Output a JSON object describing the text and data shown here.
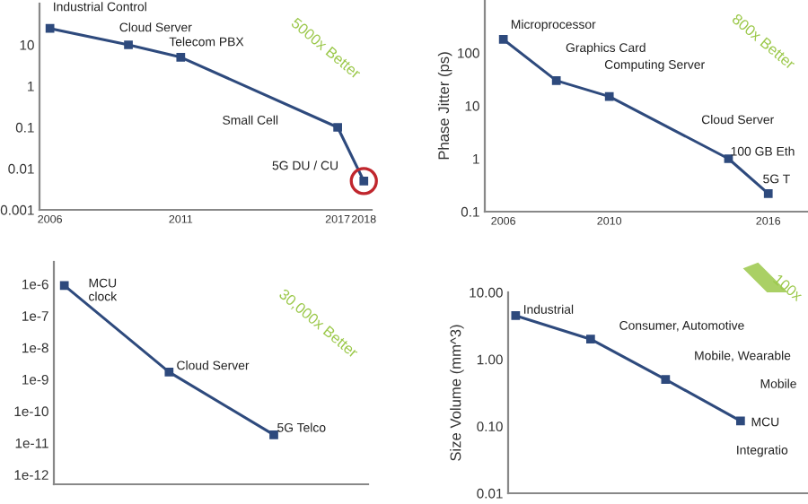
{
  "chart_data": [
    {
      "type": "line",
      "x": [
        2006,
        2009,
        2011,
        2017,
        2018
      ],
      "series": [
        {
          "color": "#2e4a7d",
          "values": [
            25,
            10,
            5,
            0.1,
            0.005
          ]
        }
      ],
      "log": "y",
      "xlim": [
        2005.6,
        2018.3
      ],
      "xticks": [
        2006,
        2011,
        2017,
        2018
      ],
      "ylim": [
        0.001,
        100
      ],
      "yticks": [
        0.001,
        0.01,
        0.1,
        1,
        10
      ],
      "marker": "square",
      "annotations": [
        "Industrial Control",
        "Cloud Server",
        "Telecom PBX",
        "Small Cell",
        "5G DU / CU",
        "5000x Better"
      ]
    },
    {
      "type": "line",
      "x": [
        2006,
        2008,
        2010,
        2014.5,
        2016
      ],
      "series": [
        {
          "color": "#2e4a7d",
          "values": [
            180,
            30,
            15,
            1,
            0.22
          ]
        }
      ],
      "log": "y",
      "xlim": [
        2005.3,
        2017.5
      ],
      "xticks": [
        2006,
        2010,
        2016
      ],
      "ylim": [
        0.1,
        1000
      ],
      "yticks": [
        0.1,
        1,
        10,
        100
      ],
      "ylabel": "Phase Jitter (ps)",
      "marker": "square",
      "annotations": [
        "Microprocessor",
        "Graphics Card",
        "Computing Server",
        "Cloud Server",
        "100 GB Eth",
        "5G T",
        "800x Better"
      ]
    },
    {
      "type": "line",
      "categories": [
        null,
        null,
        null
      ],
      "series": [
        {
          "color": "#2e4a7d",
          "values": [
            9e-07,
            1.7e-09,
            1.8e-11
          ]
        }
      ],
      "log": "y",
      "ylim": [
        5e-13,
        5e-06
      ],
      "yticks": [
        {
          "value": 1e-06,
          "label": "1e-6"
        },
        {
          "value": 1e-07,
          "label": "1e-7"
        },
        {
          "value": 1e-08,
          "label": "1e-8"
        },
        {
          "value": 1e-09,
          "label": "1e-9"
        },
        {
          "value": 1e-10,
          "label": "1e-10"
        },
        {
          "value": 1e-11,
          "label": "1e-11"
        },
        {
          "value": 1e-12,
          "label": "1e-12"
        }
      ],
      "tick_labels": "y",
      "marker": "square",
      "annotations": [
        "MCU\nclock",
        "Cloud Server",
        "5G Telco",
        "30,000x Better"
      ]
    },
    {
      "type": "line",
      "categories": [
        null,
        null,
        null,
        null
      ],
      "series": [
        {
          "color": "#2e4a7d",
          "values": [
            4.5,
            2.0,
            0.5,
            0.12
          ]
        }
      ],
      "log": "y",
      "ylim": [
        0.01,
        10
      ],
      "yticks": [
        {
          "value": 10,
          "label": "10.00"
        },
        {
          "value": 1,
          "label": "1.00"
        },
        {
          "value": 0.1,
          "label": "0.10"
        },
        {
          "value": 0.01,
          "label": "0.01"
        }
      ],
      "ylabel": "Size Volume (mm^3)",
      "tick_labels": "y",
      "marker": "square",
      "annotations": [
        "Industrial",
        "Consumer, Automotive",
        "Mobile, Wearable",
        "Mobile",
        "MCU",
        "Integratio",
        "100x"
      ]
    }
  ]
}
